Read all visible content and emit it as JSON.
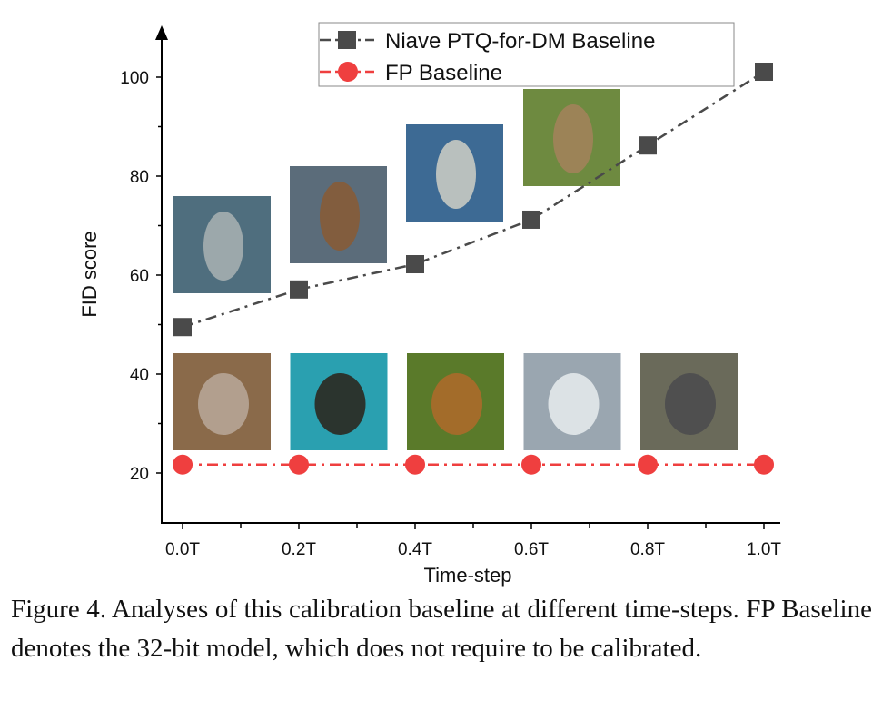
{
  "chart_data": {
    "type": "line",
    "title": "",
    "xlabel": "Time-step",
    "ylabel": "FID score",
    "categories": [
      "0.0T",
      "0.2T",
      "0.4T",
      "0.6T",
      "0.8T",
      "1.0T"
    ],
    "yticks": [
      20,
      40,
      60,
      80,
      100
    ],
    "ylim": [
      10,
      110
    ],
    "grid": false,
    "legend": "top-right",
    "series": [
      {
        "name": "Niave PTQ-for-DM Baseline",
        "values": [
          49.5,
          57.1,
          62.2,
          71.2,
          86.2,
          101.1
        ],
        "color": "#4a4a4a",
        "marker": "square",
        "line": "dash-dot"
      },
      {
        "name": "FP Baseline",
        "values": [
          21.7,
          21.7,
          21.7,
          21.7,
          21.7,
          21.7
        ],
        "color": "#ef3f3f",
        "marker": "circle",
        "line": "dash-dot"
      }
    ]
  },
  "caption": "Figure 4. Analyses of this calibration baseline at different time-steps. FP Baseline denotes the 32-bit model, which does not require to be calibrated."
}
